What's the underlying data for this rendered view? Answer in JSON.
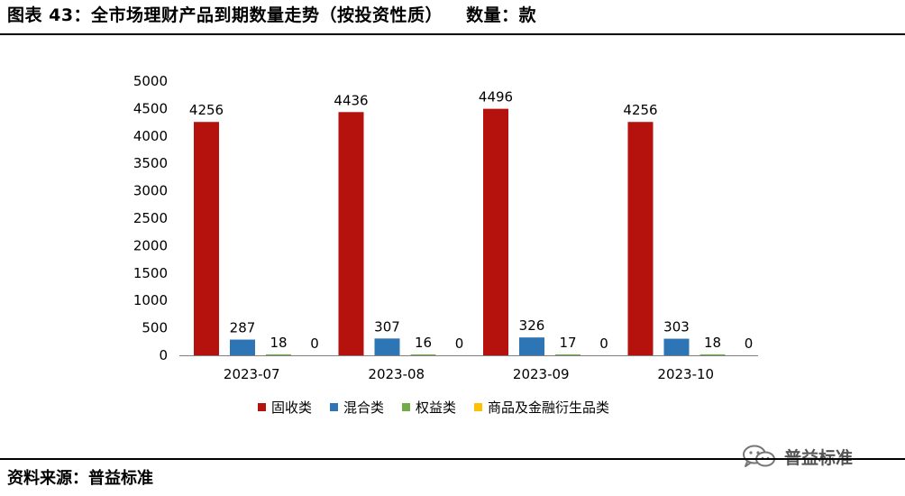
{
  "header": {
    "title": "图表 43：全市场理财产品到期数量走势（按投资性质）",
    "unit": "数量：款"
  },
  "footer": {
    "source": "资料来源：普益标准"
  },
  "watermark": {
    "text": "普益标准",
    "icon": "wechat-icon"
  },
  "chart_data": {
    "type": "bar",
    "categories": [
      "2023-07",
      "2023-08",
      "2023-09",
      "2023-10"
    ],
    "series": [
      {
        "name": "固收类",
        "color": "#B5120E",
        "values": [
          4256,
          4436,
          4496,
          4256
        ]
      },
      {
        "name": "混合类",
        "color": "#2E75B6",
        "values": [
          287,
          307,
          326,
          303
        ]
      },
      {
        "name": "权益类",
        "color": "#70AD47",
        "values": [
          18,
          16,
          17,
          18
        ]
      },
      {
        "name": "商品及金融衍生品类",
        "color": "#FFC000",
        "values": [
          0,
          0,
          0,
          0
        ]
      }
    ],
    "title": "",
    "xlabel": "",
    "ylabel": "",
    "ylim": [
      0,
      5000
    ],
    "yticks": [
      0,
      500,
      1000,
      1500,
      2000,
      2500,
      3000,
      3500,
      4000,
      4500,
      5000
    ],
    "grid": false,
    "legend": "bottom",
    "data_labels": true
  }
}
